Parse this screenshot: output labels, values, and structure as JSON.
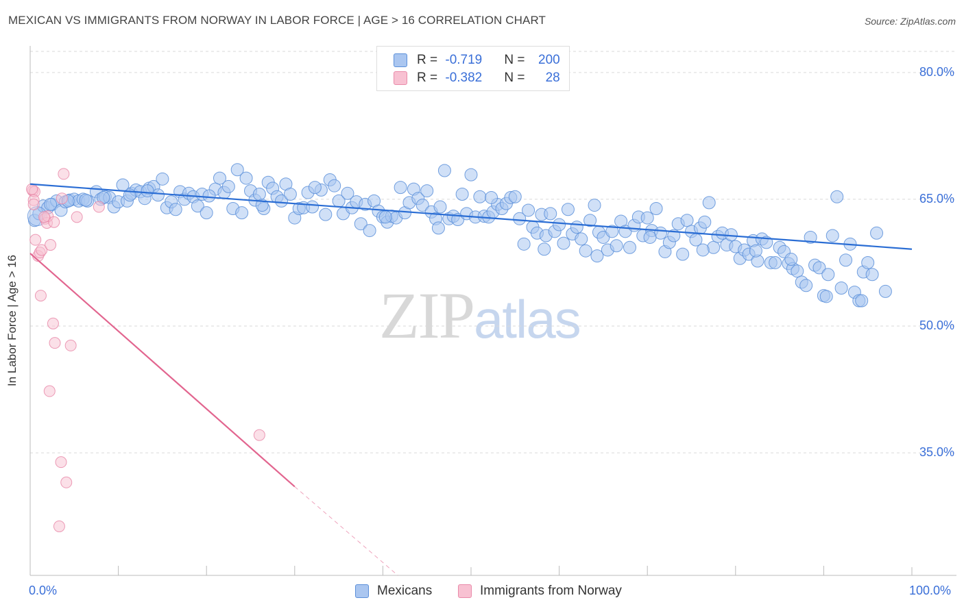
{
  "title": "MEXICAN VS IMMIGRANTS FROM NORWAY IN LABOR FORCE | AGE > 16 CORRELATION CHART",
  "source": "Source: ZipAtlas.com",
  "watermark": {
    "zip": "ZIP",
    "atlas": "atlas"
  },
  "legend_top": {
    "rows": [
      {
        "r_label": "R = ",
        "r_value": "-0.719",
        "n_label": "N = ",
        "n_value": "200"
      },
      {
        "r_label": "R = ",
        "r_value": "-0.382",
        "n_label": "N = ",
        "n_value": "28"
      }
    ]
  },
  "legend_bottom": [
    "Mexicans",
    "Immigrants from Norway"
  ],
  "colors": {
    "blue_fill": "#aac6f0",
    "blue_stroke": "#5b8fd9",
    "blue_line": "#2a6dd4",
    "pink_fill": "#f8c1d2",
    "pink_stroke": "#e98aa9",
    "pink_line": "#e2658f",
    "grid": "#d9d9d9",
    "tick_text": "#3a6fd8"
  },
  "chart_data": {
    "type": "scatter",
    "title": "MEXICAN VS IMMIGRANTS FROM NORWAY IN LABOR FORCE | AGE > 16 CORRELATION CHART",
    "xlabel": "",
    "ylabel": "In Labor Force | Age > 16",
    "xlim": [
      0,
      100
    ],
    "ylim": [
      20.5,
      82.5
    ],
    "x_tick_labels": [
      "0.0%",
      "100.0%"
    ],
    "y_ticks": [
      35,
      50,
      65,
      80
    ],
    "y_tick_labels": [
      "35.0%",
      "50.0%",
      "65.0%",
      "80.0%"
    ],
    "grid": "horizontal dashed",
    "legend_position": "top-center",
    "series": [
      {
        "name": "Mexicans",
        "r": -0.719,
        "n": 200,
        "trend": {
          "x": [
            0,
            100
          ],
          "y": [
            66.8,
            59.1
          ]
        },
        "points": [
          [
            0.5,
            62.5
          ],
          [
            1.0,
            63.3
          ],
          [
            1.5,
            64.2
          ],
          [
            2.0,
            64.0
          ],
          [
            2.5,
            64.4
          ],
          [
            3.0,
            64.8
          ],
          [
            3.5,
            63.7
          ],
          [
            4.0,
            64.7
          ],
          [
            4.5,
            64.9
          ],
          [
            5.0,
            65.0
          ],
          [
            5.5,
            64.8
          ],
          [
            6.0,
            65.0
          ],
          [
            6.5,
            64.8
          ],
          [
            7.5,
            65.9
          ],
          [
            8.0,
            65.0
          ],
          [
            8.5,
            65.3
          ],
          [
            9.0,
            65.2
          ],
          [
            9.5,
            64.1
          ],
          [
            10.0,
            64.7
          ],
          [
            10.5,
            66.7
          ],
          [
            11.0,
            64.8
          ],
          [
            11.5,
            65.7
          ],
          [
            12.0,
            66.1
          ],
          [
            12.5,
            65.9
          ],
          [
            13.0,
            65.1
          ],
          [
            13.5,
            66.3
          ],
          [
            14.0,
            66.5
          ],
          [
            14.5,
            65.5
          ],
          [
            15.0,
            67.4
          ],
          [
            15.5,
            64.0
          ],
          [
            16.0,
            64.7
          ],
          [
            16.5,
            63.8
          ],
          [
            17.0,
            65.9
          ],
          [
            17.5,
            65.0
          ],
          [
            18.0,
            65.7
          ],
          [
            18.5,
            65.3
          ],
          [
            19.0,
            64.2
          ],
          [
            19.5,
            65.6
          ],
          [
            20.0,
            63.4
          ],
          [
            21.0,
            66.2
          ],
          [
            21.5,
            67.5
          ],
          [
            22.0,
            65.8
          ],
          [
            22.5,
            66.5
          ],
          [
            23.0,
            63.9
          ],
          [
            23.5,
            68.5
          ],
          [
            24.0,
            63.4
          ],
          [
            24.5,
            67.5
          ],
          [
            25.0,
            66.0
          ],
          [
            25.5,
            64.9
          ],
          [
            26.0,
            65.6
          ],
          [
            26.5,
            63.9
          ],
          [
            27.0,
            67.0
          ],
          [
            27.5,
            66.3
          ],
          [
            28.0,
            65.3
          ],
          [
            28.5,
            64.8
          ],
          [
            29.0,
            66.8
          ],
          [
            29.5,
            65.6
          ],
          [
            30.0,
            62.8
          ],
          [
            30.5,
            63.9
          ],
          [
            31.0,
            64.0
          ],
          [
            31.5,
            65.8
          ],
          [
            32.0,
            64.1
          ],
          [
            33.0,
            66.1
          ],
          [
            33.5,
            63.2
          ],
          [
            34.0,
            67.3
          ],
          [
            34.5,
            66.6
          ],
          [
            35.0,
            64.8
          ],
          [
            35.5,
            63.3
          ],
          [
            36.0,
            65.7
          ],
          [
            36.5,
            64.0
          ],
          [
            37.0,
            64.7
          ],
          [
            37.5,
            62.1
          ],
          [
            38.0,
            64.4
          ],
          [
            38.5,
            61.3
          ],
          [
            39.0,
            64.8
          ],
          [
            39.5,
            63.6
          ],
          [
            40.0,
            62.9
          ],
          [
            40.5,
            62.3
          ],
          [
            41.0,
            63.0
          ],
          [
            41.5,
            62.8
          ],
          [
            42.0,
            66.4
          ],
          [
            42.5,
            63.4
          ],
          [
            43.0,
            64.6
          ],
          [
            43.5,
            66.2
          ],
          [
            44.0,
            65.1
          ],
          [
            44.5,
            64.3
          ],
          [
            45.0,
            66.0
          ],
          [
            45.5,
            63.5
          ],
          [
            46.0,
            62.7
          ],
          [
            46.5,
            64.1
          ],
          [
            47.0,
            68.4
          ],
          [
            47.5,
            62.7
          ],
          [
            48.0,
            63.0
          ],
          [
            48.5,
            62.6
          ],
          [
            49.0,
            65.6
          ],
          [
            49.5,
            63.3
          ],
          [
            50.0,
            67.9
          ],
          [
            50.5,
            62.9
          ],
          [
            51.0,
            65.3
          ],
          [
            51.5,
            63.0
          ],
          [
            52.0,
            62.9
          ],
          [
            52.5,
            63.5
          ],
          [
            53.0,
            64.4
          ],
          [
            53.5,
            63.9
          ],
          [
            54.0,
            64.5
          ],
          [
            54.5,
            65.2
          ],
          [
            55.0,
            65.3
          ],
          [
            55.5,
            62.7
          ],
          [
            56.0,
            59.7
          ],
          [
            56.5,
            63.7
          ],
          [
            57.0,
            61.7
          ],
          [
            57.5,
            61.0
          ],
          [
            58.0,
            63.2
          ],
          [
            58.5,
            60.7
          ],
          [
            59.0,
            63.3
          ],
          [
            59.5,
            61.2
          ],
          [
            60.0,
            62.0
          ],
          [
            60.5,
            59.8
          ],
          [
            61.0,
            63.8
          ],
          [
            61.5,
            60.9
          ],
          [
            62.0,
            61.7
          ],
          [
            62.5,
            60.3
          ],
          [
            63.0,
            58.9
          ],
          [
            63.5,
            62.5
          ],
          [
            64.0,
            64.3
          ],
          [
            64.5,
            61.1
          ],
          [
            65.0,
            60.5
          ],
          [
            65.5,
            59.0
          ],
          [
            66.0,
            61.2
          ],
          [
            66.5,
            59.5
          ],
          [
            67.0,
            62.4
          ],
          [
            67.5,
            61.2
          ],
          [
            68.0,
            59.3
          ],
          [
            68.5,
            61.9
          ],
          [
            69.0,
            62.9
          ],
          [
            69.5,
            60.7
          ],
          [
            70.0,
            62.8
          ],
          [
            70.5,
            61.3
          ],
          [
            71.0,
            63.9
          ],
          [
            71.5,
            61.0
          ],
          [
            72.0,
            58.8
          ],
          [
            72.5,
            59.9
          ],
          [
            73.0,
            60.7
          ],
          [
            73.5,
            62.1
          ],
          [
            74.0,
            58.5
          ],
          [
            74.5,
            62.5
          ],
          [
            75.0,
            61.2
          ],
          [
            75.5,
            60.2
          ],
          [
            76.0,
            61.6
          ],
          [
            76.5,
            62.3
          ],
          [
            77.0,
            64.6
          ],
          [
            77.5,
            59.3
          ],
          [
            78.0,
            60.6
          ],
          [
            78.5,
            61.0
          ],
          [
            79.0,
            59.6
          ],
          [
            79.5,
            60.8
          ],
          [
            80.0,
            59.4
          ],
          [
            80.5,
            58.0
          ],
          [
            81.0,
            59.0
          ],
          [
            81.5,
            58.5
          ],
          [
            82.0,
            60.1
          ],
          [
            82.5,
            57.7
          ],
          [
            83.0,
            60.3
          ],
          [
            83.5,
            59.9
          ],
          [
            84.0,
            57.5
          ],
          [
            84.5,
            57.5
          ],
          [
            85.0,
            59.3
          ],
          [
            85.5,
            58.8
          ],
          [
            86.0,
            57.4
          ],
          [
            86.5,
            56.8
          ],
          [
            87.0,
            56.5
          ],
          [
            87.5,
            55.2
          ],
          [
            88.0,
            54.8
          ],
          [
            88.5,
            60.5
          ],
          [
            89.0,
            57.2
          ],
          [
            89.5,
            56.9
          ],
          [
            90.0,
            53.6
          ],
          [
            90.5,
            56.1
          ],
          [
            91.0,
            60.7
          ],
          [
            91.5,
            65.3
          ],
          [
            92.0,
            54.5
          ],
          [
            92.5,
            57.8
          ],
          [
            93.0,
            59.7
          ],
          [
            93.5,
            54.0
          ],
          [
            94.0,
            53.0
          ],
          [
            94.5,
            56.4
          ],
          [
            95.0,
            57.5
          ],
          [
            95.5,
            56.1
          ],
          [
            96.0,
            61.0
          ],
          [
            97.0,
            54.1
          ],
          [
            2.3,
            64.4
          ],
          [
            4.3,
            64.8
          ],
          [
            6.3,
            64.9
          ],
          [
            8.3,
            65.2
          ],
          [
            11.3,
            65.5
          ],
          [
            13.3,
            66.0
          ],
          [
            20.3,
            65.4
          ],
          [
            26.3,
            64.3
          ],
          [
            32.3,
            66.4
          ],
          [
            40.3,
            62.9
          ],
          [
            46.3,
            61.6
          ],
          [
            52.3,
            65.2
          ],
          [
            58.3,
            59.1
          ],
          [
            64.3,
            58.3
          ],
          [
            70.3,
            60.5
          ],
          [
            76.3,
            59.0
          ],
          [
            82.3,
            58.9
          ],
          [
            86.3,
            57.9
          ],
          [
            90.3,
            53.5
          ],
          [
            94.3,
            53.0
          ]
        ]
      },
      {
        "name": "Immigrants from Norway",
        "r": -0.382,
        "n": 28,
        "trend_solid": {
          "x": [
            0,
            30
          ],
          "y": [
            58.6,
            31.0
          ]
        },
        "trend_dashed": {
          "x": [
            30,
            41.7
          ],
          "y": [
            31.0,
            20.5
          ]
        },
        "points": [
          [
            0.3,
            66.0
          ],
          [
            0.5,
            65.9
          ],
          [
            0.4,
            64.9
          ],
          [
            0.4,
            64.4
          ],
          [
            0.6,
            60.2
          ],
          [
            0.9,
            58.3
          ],
          [
            1.1,
            58.7
          ],
          [
            1.3,
            59.0
          ],
          [
            1.2,
            53.6
          ],
          [
            1.7,
            62.7
          ],
          [
            1.9,
            62.2
          ],
          [
            2.0,
            63.0
          ],
          [
            1.6,
            62.9
          ],
          [
            2.7,
            62.3
          ],
          [
            2.3,
            59.6
          ],
          [
            2.6,
            50.3
          ],
          [
            2.8,
            48.0
          ],
          [
            3.6,
            65.1
          ],
          [
            3.8,
            68.0
          ],
          [
            4.6,
            47.7
          ],
          [
            2.2,
            42.3
          ],
          [
            3.5,
            33.9
          ],
          [
            4.1,
            31.5
          ],
          [
            3.3,
            26.3
          ],
          [
            26.0,
            37.1
          ],
          [
            5.3,
            62.9
          ],
          [
            7.8,
            64.1
          ],
          [
            0.2,
            66.2
          ]
        ]
      }
    ]
  }
}
